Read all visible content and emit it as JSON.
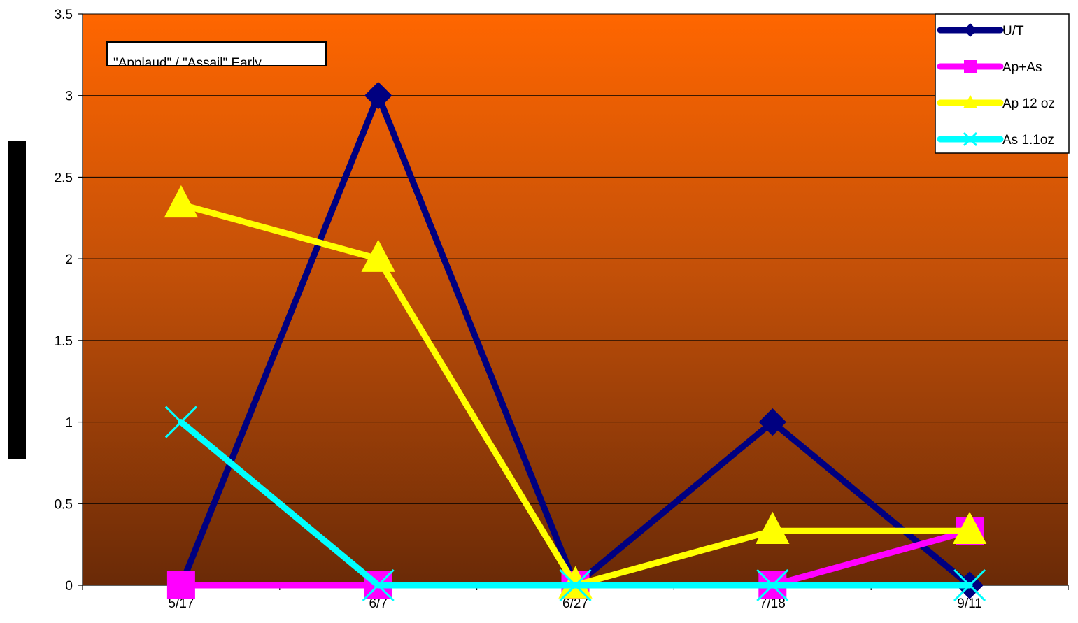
{
  "chart_data": {
    "type": "line",
    "title": "\"Applaud\" / \"Assail\" Early",
    "xlabel": "",
    "ylabel": "",
    "categories": [
      "5/17",
      "6/7",
      "6/27",
      "7/18",
      "9/11"
    ],
    "ylim": [
      0,
      3.5
    ],
    "y_ticks": [
      "0",
      "0.5",
      "1",
      "1.5",
      "2",
      "2.5",
      "3",
      "3.5"
    ],
    "y_tick_values": [
      0,
      0.5,
      1,
      1.5,
      2,
      2.5,
      3,
      3.5
    ],
    "grid": "horizontal",
    "legend_position": "top-right",
    "background": "gradient orange to dark brown",
    "series": [
      {
        "name": "U/T",
        "values": [
          0,
          3,
          0,
          1,
          0
        ],
        "color": "#000080",
        "marker": "diamond"
      },
      {
        "name": "Ap+As",
        "values": [
          0,
          0,
          0,
          0,
          0.333
        ],
        "color": "#ff00ff",
        "marker": "square"
      },
      {
        "name": "Ap 12 oz",
        "values": [
          2.333,
          2,
          0,
          0.333,
          0.333
        ],
        "color": "#ffff00",
        "marker": "triangle"
      },
      {
        "name": "As 1.1oz",
        "values": [
          1,
          0,
          0,
          0,
          0
        ],
        "color": "#00ffff",
        "marker": "x"
      }
    ]
  }
}
